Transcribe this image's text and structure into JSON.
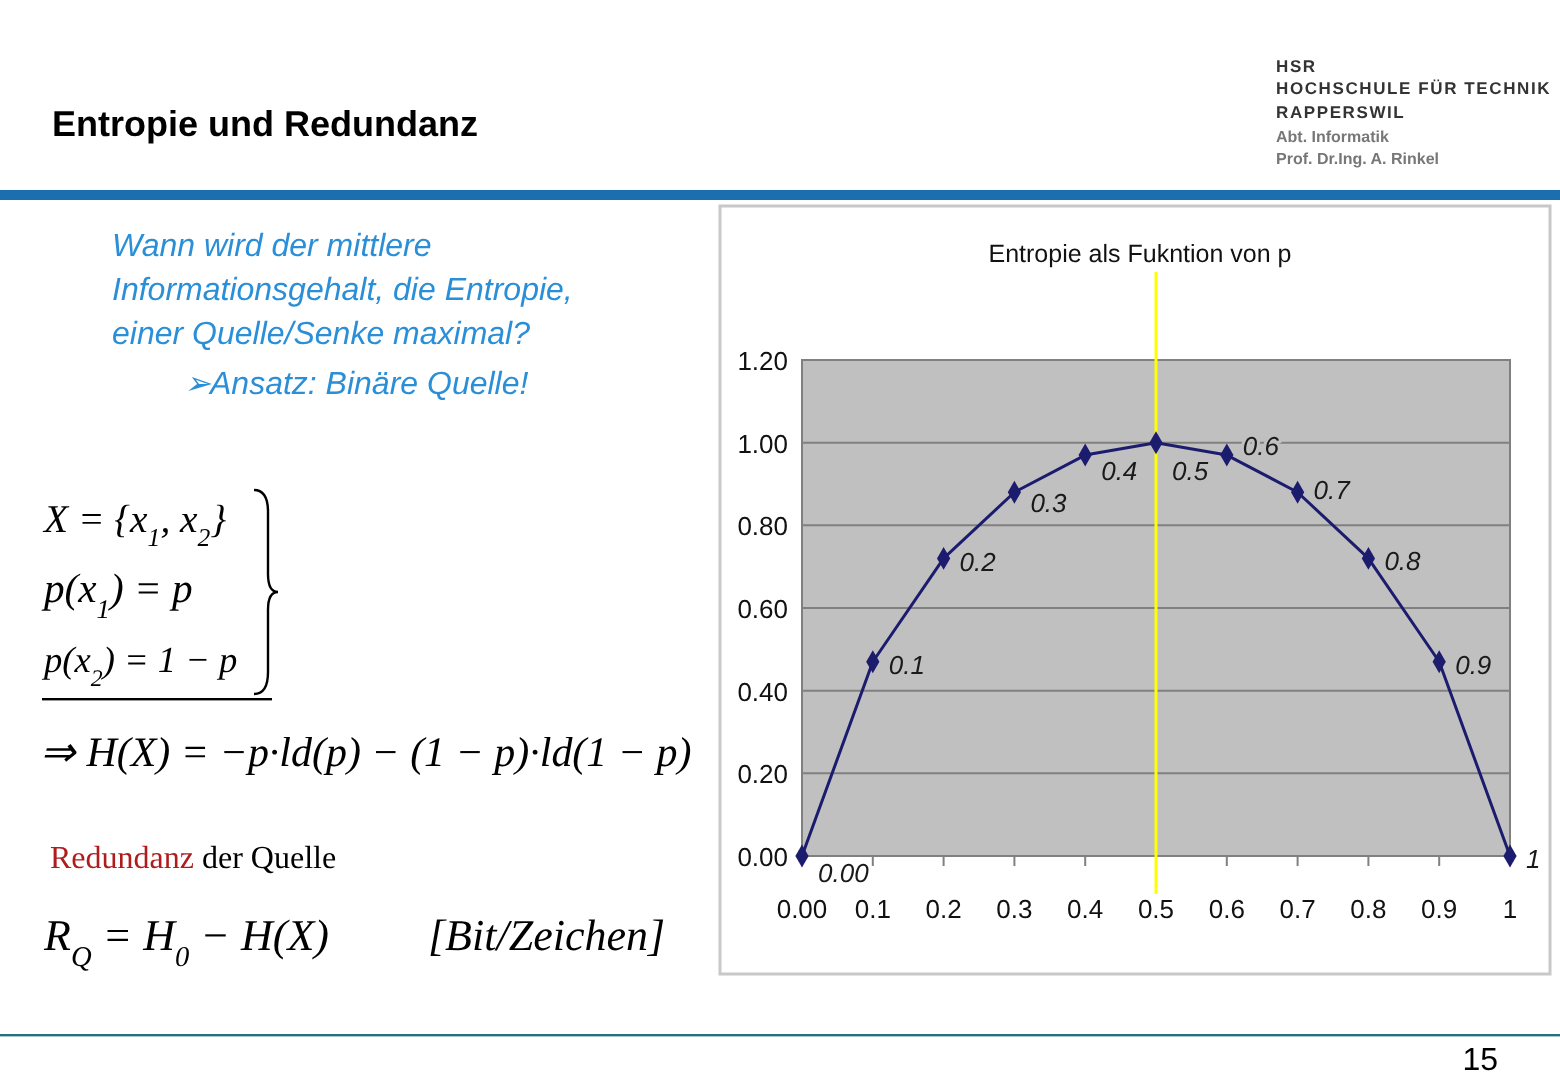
{
  "chart_data": {
    "type": "line",
    "title": "Entropie und Redundanz",
    "subtitle": "Entropie als Fukntion von p",
    "x": [
      0,
      0.1,
      0.2,
      0.3,
      0.4,
      0.5,
      0.6,
      0.7,
      0.8,
      0.9,
      1
    ],
    "series": [
      {
        "color": "#1c1c6e",
        "values": [
          0,
          0.47,
          0.72,
          0.88,
          0.97,
          1.0,
          0.97,
          0.88,
          0.72,
          0.47,
          0
        ]
      }
    ],
    "xlim": [
      0,
      1
    ],
    "xticks": [
      {
        "value": 0,
        "label": "0.00"
      },
      0.1,
      0.2,
      0.3,
      0.4,
      0.5,
      0.6,
      0.7,
      0.8,
      0.9,
      1
    ],
    "ylim": [
      0,
      1.2
    ],
    "yticks": [
      {
        "value": 0,
        "label": "0.00"
      },
      {
        "value": 0.2,
        "label": "0.20"
      },
      {
        "value": 0.4,
        "label": "0.40"
      },
      {
        "value": 0.6,
        "label": "0.60"
      },
      {
        "value": 0.8,
        "label": "0.80"
      },
      {
        "value": 1,
        "label": "1.00"
      },
      {
        "value": 1.2,
        "label": "1.20"
      }
    ],
    "grid": "y",
    "marker": "diamond",
    "line_style": "solid",
    "ref_lines": [
      {
        "axis": "x",
        "value": 0.5,
        "color": "#ffff00"
      }
    ],
    "annotations": [
      "Wann wird der mittlere Informationsgehalt, die Entropie, einer Quelle/Senke maximal?",
      "➢Ansatz: Binäre Quelle!",
      "X = {x$_{1}$, x$_{2}$}",
      "p(x$_{1}$) = p",
      "p(x$_{2}$) = 1 − p",
      "⇒ H(X) = −p·ld(p) − (1 − p)·ld(1 − p)",
      "Redundanz der Quelle",
      "R$_{Q}$ = H$_{0}$ − H(X)",
      "[Bit/Zeichen]",
      "HSR",
      "HOCHSCHULE FÜR TECHNIK",
      "RAPPERSWIL",
      "Abt. Informatik",
      "Prof. Dr.Ing. A. Rinkel",
      "15",
      {
        "text": "0.00",
        "x": 0,
        "y": 0
      },
      {
        "text": "0.1",
        "x": 0.1,
        "y": 0.47
      },
      {
        "text": "0.2",
        "x": 0.2,
        "y": 0.72
      },
      {
        "text": "0.3",
        "x": 0.3,
        "y": 0.88
      },
      {
        "text": "0.4",
        "x": 0.4,
        "y": 0.97
      },
      {
        "text": "0.5",
        "x": 0.5,
        "y": 1.0
      },
      {
        "text": "0.6",
        "x": 0.6,
        "y": 0.97
      },
      {
        "text": "0.7",
        "x": 0.7,
        "y": 0.88
      },
      {
        "text": "0.8",
        "x": 0.8,
        "y": 0.72
      },
      {
        "text": "0.9",
        "x": 0.9,
        "y": 0.47
      },
      {
        "text": "1",
        "x": 1,
        "y": 0
      }
    ]
  }
}
